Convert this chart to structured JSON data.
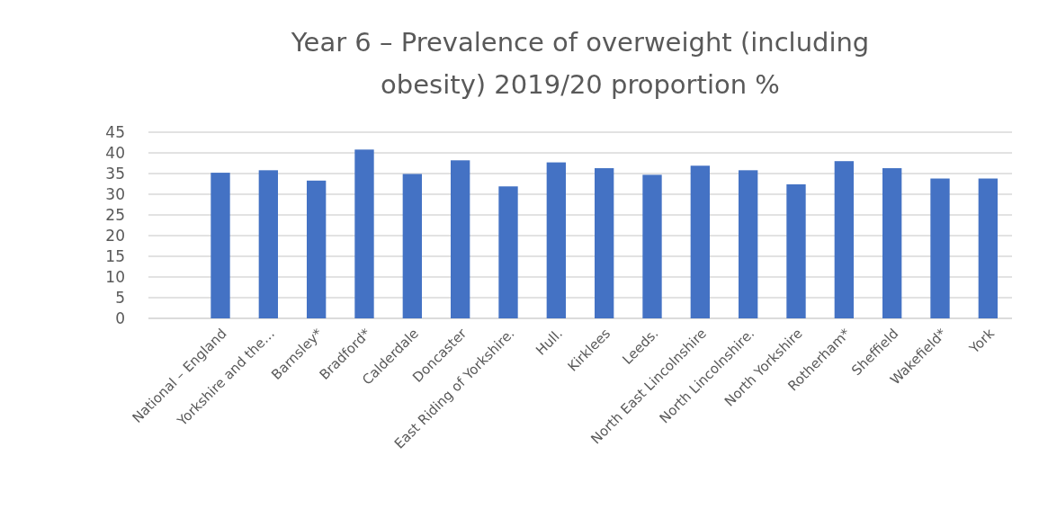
{
  "chart_data": {
    "type": "bar",
    "title": "Year 6 – Prevalence of overweight (including obesity) 2019/20 proportion %",
    "categories": [
      null,
      "National – England",
      "Yorkshire and the…",
      "Barnsley*",
      "Bradford*",
      "Calderdale",
      "Doncaster",
      "East Riding of Yorkshire.",
      "Hull.",
      "Kirklees",
      "Leeds.",
      "North East Lincolnshire",
      "North Lincolnshire.",
      "North Yorkshire",
      "Rotherham*",
      "Sheffield",
      "Wakefield*",
      "York"
    ],
    "values": [
      null,
      35.2,
      35.8,
      33.3,
      40.8,
      34.9,
      38.2,
      31.9,
      37.7,
      36.3,
      34.7,
      36.9,
      35.8,
      32.4,
      38.0,
      36.3,
      33.8,
      33.8
    ],
    "color": "#4472c4",
    "ylim": [
      0,
      45
    ],
    "yticks": [
      0,
      5,
      10,
      15,
      20,
      25,
      30,
      35,
      40,
      45
    ],
    "grid": "y"
  }
}
